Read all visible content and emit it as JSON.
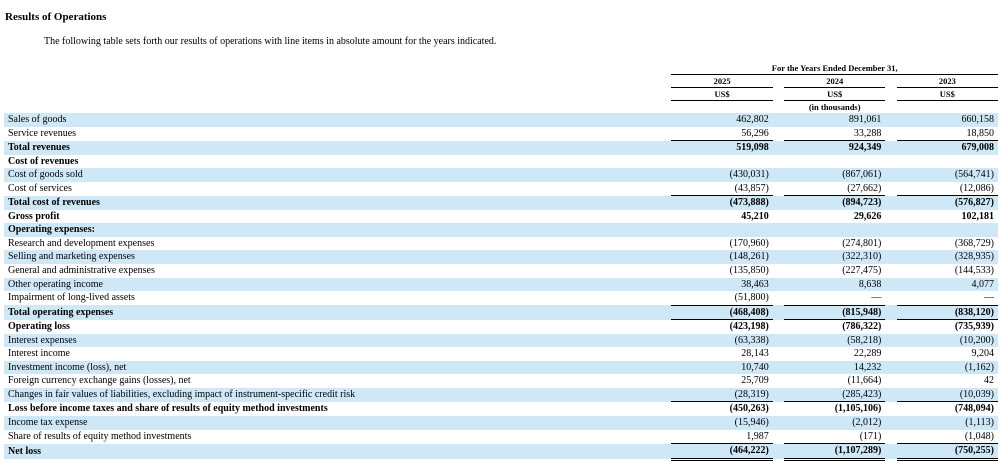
{
  "heading": "Results of Operations",
  "intro": "The following table sets forth our results of operations with line items in absolute amount for the years indicated.",
  "table": {
    "period_header": "For the Years Ended December 31,",
    "years": [
      "2025",
      "2024",
      "2023"
    ],
    "currency": [
      "US$",
      "US$",
      "US$"
    ],
    "unit_note": "(in thousands)",
    "rows": [
      {
        "label": "Sales of goods",
        "values": [
          "462,802",
          "891,061",
          "660,158"
        ],
        "bold": false,
        "shade": true
      },
      {
        "label": "Service revenues",
        "values": [
          "56,296",
          "33,288",
          "18,850"
        ],
        "bold": false,
        "shade": false
      },
      {
        "label": "Total revenues",
        "values": [
          "519,098",
          "924,349",
          "679,008"
        ],
        "bold": true,
        "shade": true
      },
      {
        "label": "Cost of revenues",
        "values": [
          "",
          "",
          ""
        ],
        "bold": true,
        "shade": false
      },
      {
        "label": "Cost of goods sold",
        "values": [
          "(430,031)",
          "(867,061)",
          "(564,741)"
        ],
        "bold": false,
        "shade": true
      },
      {
        "label": "Cost of services",
        "values": [
          "(43,857)",
          "(27,662)",
          "(12,086)"
        ],
        "bold": false,
        "shade": false
      },
      {
        "label": "Total cost of revenues",
        "values": [
          "(473,888)",
          "(894,723)",
          "(576,827)"
        ],
        "bold": true,
        "shade": true
      },
      {
        "label": "Gross profit",
        "values": [
          "45,210",
          "29,626",
          "102,181"
        ],
        "bold": true,
        "shade": false
      },
      {
        "label": "Operating expenses:",
        "values": [
          "",
          "",
          ""
        ],
        "bold": true,
        "shade": true
      },
      {
        "label": "Research and development expenses",
        "values": [
          "(170,960)",
          "(274,801)",
          "(368,729)"
        ],
        "bold": false,
        "shade": false
      },
      {
        "label": "Selling and marketing expenses",
        "values": [
          "(148,261)",
          "(322,310)",
          "(328,935)"
        ],
        "bold": false,
        "shade": true
      },
      {
        "label": "General and administrative expenses",
        "values": [
          "(135,850)",
          "(227,475)",
          "(144,533)"
        ],
        "bold": false,
        "shade": false
      },
      {
        "label": "Other operating income",
        "values": [
          "38,463",
          "8,638",
          "4,077"
        ],
        "bold": false,
        "shade": true
      },
      {
        "label": "Impairment of long-lived assets",
        "values": [
          "(51,800)",
          "—",
          "—"
        ],
        "bold": false,
        "shade": false
      },
      {
        "label": "Total operating expenses",
        "values": [
          "(468,408)",
          "(815,948)",
          "(838,120)"
        ],
        "bold": true,
        "shade": true
      },
      {
        "label": "Operating loss",
        "values": [
          "(423,198)",
          "(786,322)",
          "(735,939)"
        ],
        "bold": true,
        "shade": false
      },
      {
        "label": "Interest expenses",
        "values": [
          "(63,338)",
          "(58,218)",
          "(10,200)"
        ],
        "bold": false,
        "shade": true
      },
      {
        "label": "Interest income",
        "values": [
          "28,143",
          "22,289",
          "9,204"
        ],
        "bold": false,
        "shade": false
      },
      {
        "label": "Investment income (loss), net",
        "values": [
          "10,740",
          "14,232",
          "(1,162)"
        ],
        "bold": false,
        "shade": true
      },
      {
        "label": "Foreign currency exchange gains (losses), net",
        "values": [
          "25,709",
          "(11,664)",
          "42"
        ],
        "bold": false,
        "shade": false
      },
      {
        "label": "Changes in fair values of liabilities, excluding impact of instrument-specific credit risk",
        "values": [
          "(28,319)",
          "(285,423)",
          "(10,039)"
        ],
        "bold": false,
        "shade": true
      },
      {
        "label": "Loss before income taxes and share of results of equity method investments",
        "values": [
          "(450,263)",
          "(1,105,106)",
          "(748,094)"
        ],
        "bold": true,
        "shade": false
      },
      {
        "label": "Income tax expense",
        "values": [
          "(15,946)",
          "(2,012)",
          "(1,113)"
        ],
        "bold": false,
        "shade": true
      },
      {
        "label": "Share of results of equity method investments",
        "values": [
          "1,987",
          "(171)",
          "(1,048)"
        ],
        "bold": false,
        "shade": false
      },
      {
        "label": "Net loss",
        "values": [
          "(464,222)",
          "(1,107,289)",
          "(750,255)"
        ],
        "bold": true,
        "shade": true
      }
    ]
  }
}
